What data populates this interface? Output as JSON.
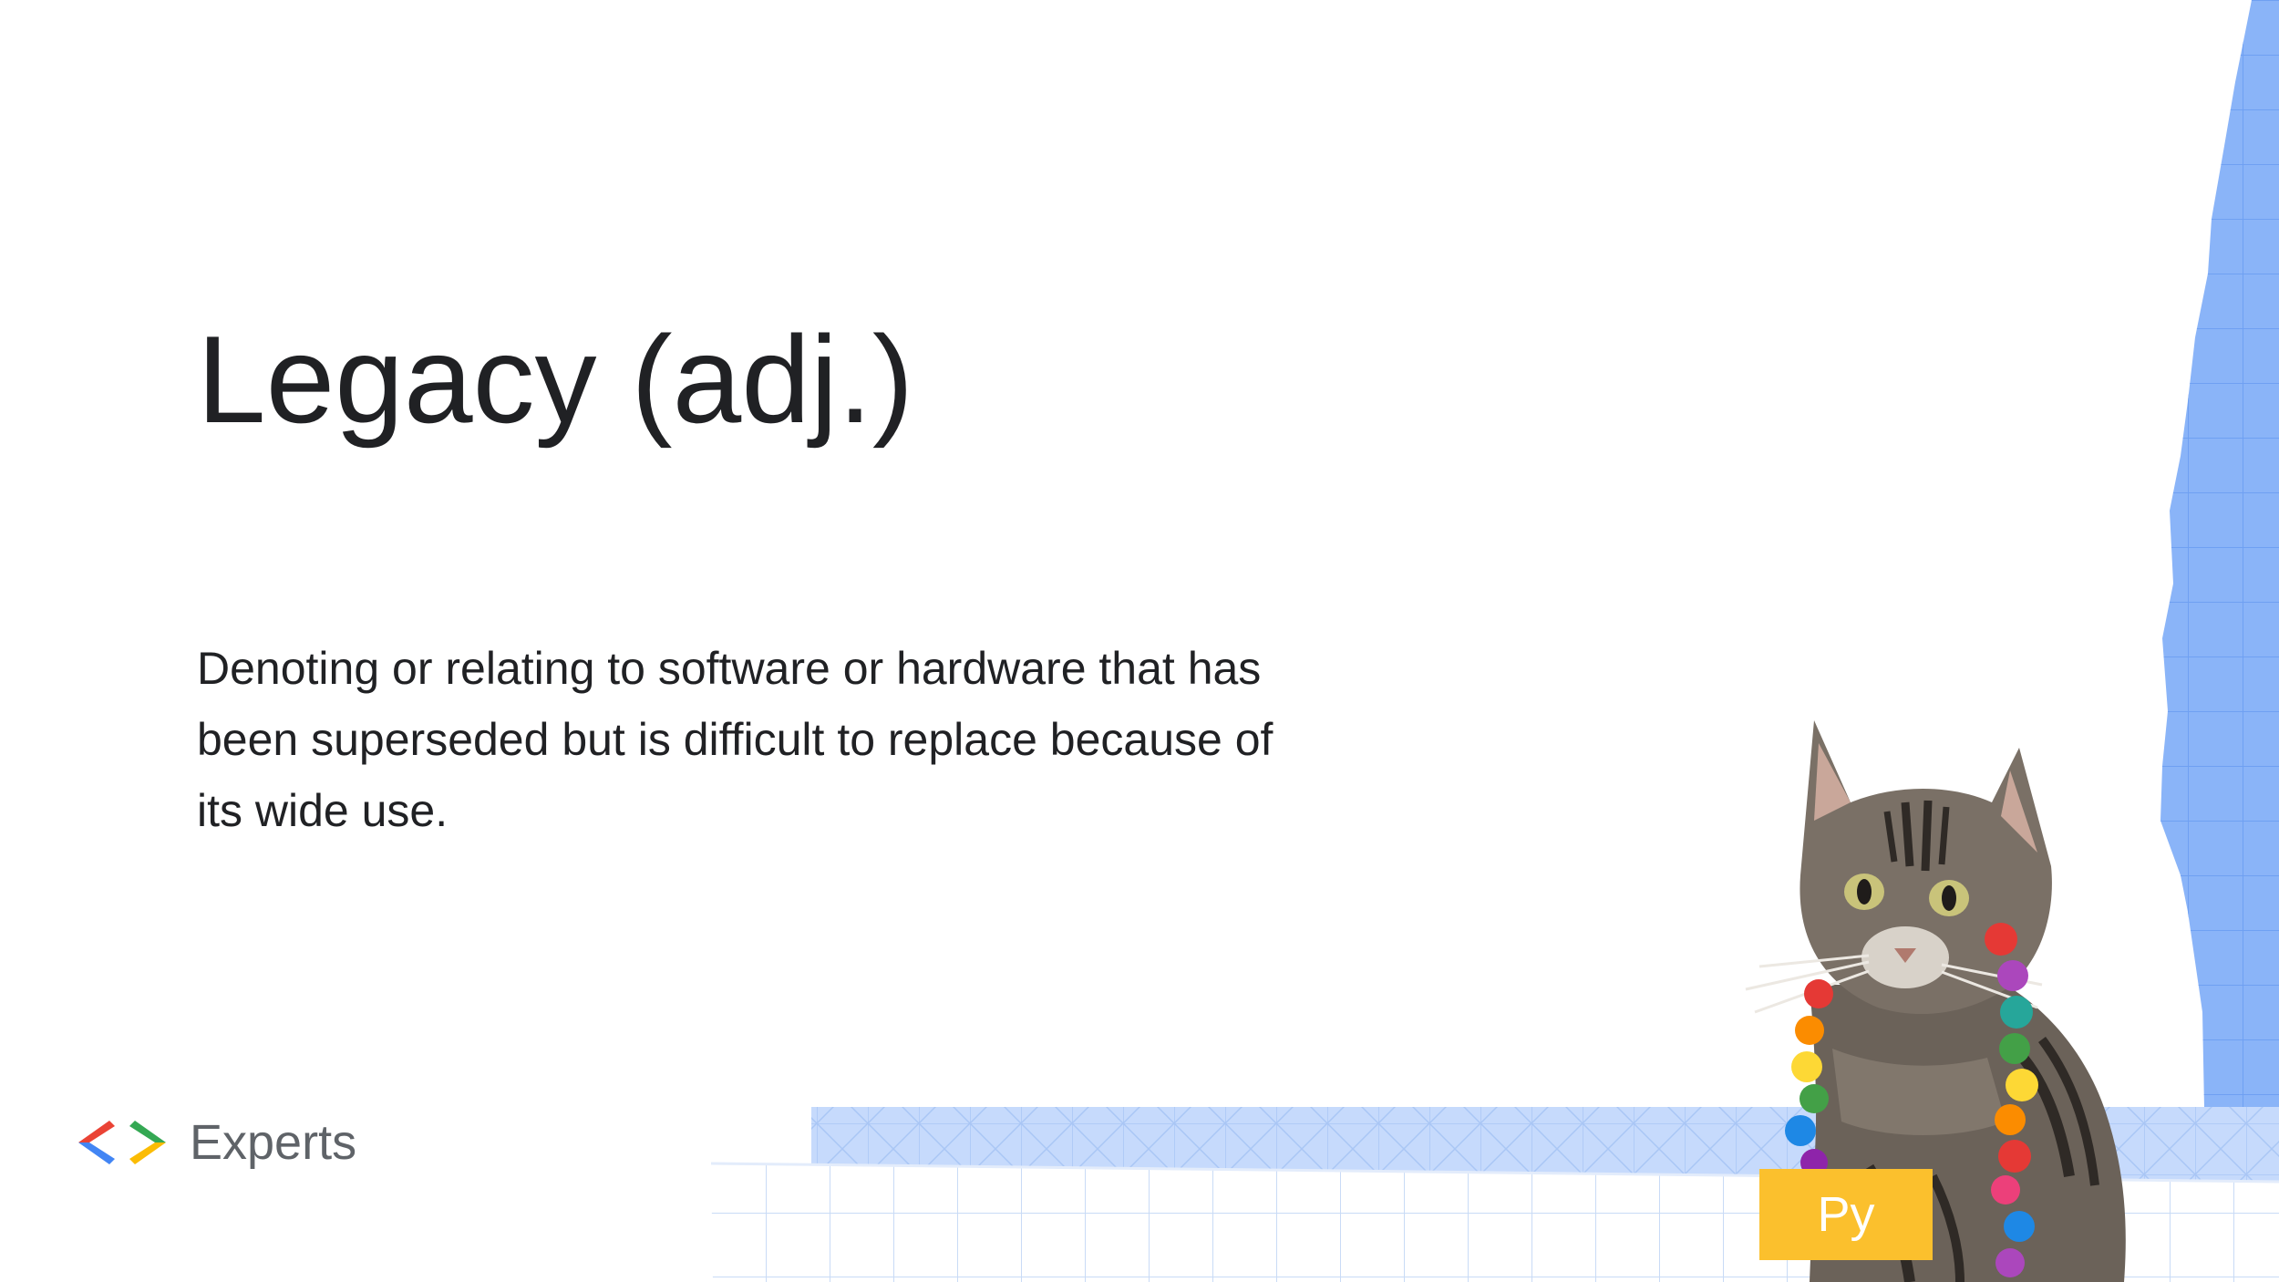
{
  "slide": {
    "title": "Legacy (adj.)",
    "definition": "Denoting or relating to software or hardware that has been superseded but is difficult to replace because of its wide use."
  },
  "logo": {
    "text": "Experts",
    "icon": "google-developers-chevrons-icon"
  },
  "badge": {
    "text": "Py",
    "color": "#fbc02d"
  },
  "image": {
    "subject": "cat-with-flower-lei"
  },
  "colors": {
    "accent_blue": "#8ab4f8",
    "light_blue": "#c6dafc",
    "grid_line": "#d2e3fc",
    "text": "#202124",
    "logo_text": "#5f6368"
  }
}
